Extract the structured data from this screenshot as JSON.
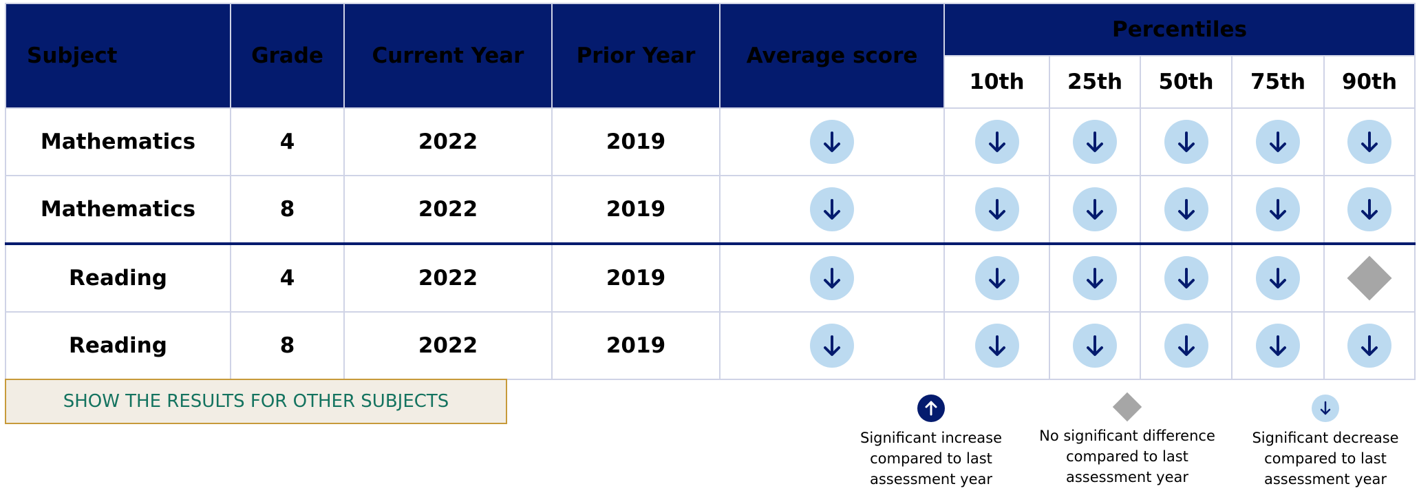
{
  "table": {
    "headers": {
      "subject": "Subject",
      "grade": "Grade",
      "current_year": "Current Year",
      "prior_year": "Prior Year",
      "average_score": "Average score",
      "percentiles_group": "Percentiles",
      "percentiles": [
        "10th",
        "25th",
        "50th",
        "75th",
        "90th"
      ]
    },
    "rows": [
      {
        "subject": "Mathematics",
        "grade": "4",
        "current_year": "2022",
        "prior_year": "2019",
        "average_score": "decrease",
        "percentiles": [
          "decrease",
          "decrease",
          "decrease",
          "decrease",
          "decrease"
        ]
      },
      {
        "subject": "Mathematics",
        "grade": "8",
        "current_year": "2022",
        "prior_year": "2019",
        "average_score": "decrease",
        "percentiles": [
          "decrease",
          "decrease",
          "decrease",
          "decrease",
          "decrease"
        ]
      },
      {
        "subject": "Reading",
        "grade": "4",
        "current_year": "2022",
        "prior_year": "2019",
        "average_score": "decrease",
        "percentiles": [
          "decrease",
          "decrease",
          "decrease",
          "decrease",
          "no-difference"
        ]
      },
      {
        "subject": "Reading",
        "grade": "8",
        "current_year": "2022",
        "prior_year": "2019",
        "average_score": "decrease",
        "percentiles": [
          "decrease",
          "decrease",
          "decrease",
          "decrease",
          "decrease"
        ]
      }
    ]
  },
  "show_button": {
    "label": "SHOW THE RESULTS FOR OTHER SUBJECTS"
  },
  "legend": {
    "increase": {
      "line1": "Significant increase",
      "line2": "compared to last",
      "line3": "assessment year",
      "icon": "arrow-up-circle-icon"
    },
    "no_difference": {
      "line1": "No significant difference",
      "line2": "compared to last",
      "line3": "assessment year",
      "icon": "diamond-icon"
    },
    "decrease": {
      "line1": "Significant decrease",
      "line2": "compared to last",
      "line3": "assessment year",
      "icon": "arrow-down-circle-icon"
    }
  },
  "colors": {
    "header_navy": "#041b6e",
    "decrease_circle": "#bcdaf0",
    "no_difference_diamond": "#a6a6a6",
    "button_background": "#f2ede4",
    "button_border": "#c79a3a",
    "button_text": "#14735f"
  }
}
